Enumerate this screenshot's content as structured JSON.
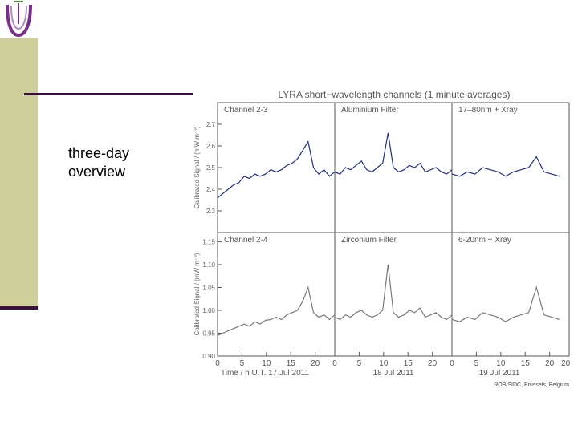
{
  "slide": {
    "body_lines": [
      "three-day",
      "overview"
    ]
  },
  "colors": {
    "sidebar": "#cfcf9c",
    "accent_line": "#3a0f3f",
    "upper_series": "#1f2f8a",
    "lower_series": "#7a7a7a",
    "logo": "#7a2e8a"
  },
  "icons": {
    "logo": "lyra-logo-icon"
  },
  "chart_data": {
    "type": "line",
    "title": "LYRA short−wavelength channels (1 minute averages)",
    "credit": "ROB/SIDC, Brussels, Belgium",
    "x_axis": {
      "ticks_per_panel": [
        "0",
        "5",
        "10",
        "15",
        "20"
      ],
      "panel_date_labels": [
        "Time / h U.T. 17 Jul 2011",
        "18 Jul 2011",
        "19 Jul 2011"
      ],
      "extra_tick": "20",
      "hours_per_panel": [
        24,
        24,
        22
      ]
    },
    "panels_top": {
      "ylabel": "Calibrated Signal / (mW m⁻²)",
      "ylim": [
        2.2,
        2.8
      ],
      "yticks": [
        "2.7",
        "2.6",
        "2.5",
        "2.4",
        "2.3"
      ],
      "ytick_values": [
        2.7,
        2.6,
        2.5,
        2.4,
        2.3
      ],
      "panel_labels": [
        "Channel 2-3",
        "Aluminium Filter",
        "17–80nm + Xray"
      ],
      "series": [
        {
          "values": [
            2.36,
            2.38,
            2.4,
            2.42,
            2.43,
            2.46,
            2.45,
            2.47,
            2.46,
            2.47,
            2.49,
            2.48,
            2.49,
            2.51,
            2.52,
            2.54,
            2.58,
            2.62,
            2.5,
            2.47,
            2.49,
            2.46,
            2.48
          ]
        },
        {
          "values": [
            2.48,
            2.47,
            2.5,
            2.49,
            2.51,
            2.53,
            2.49,
            2.48,
            2.5,
            2.52,
            2.66,
            2.5,
            2.48,
            2.49,
            2.51,
            2.5,
            2.52,
            2.48,
            2.49,
            2.5,
            2.48,
            2.47,
            2.49
          ]
        },
        {
          "values": [
            2.47,
            2.46,
            2.48,
            2.47,
            2.5,
            2.49,
            2.48,
            2.46,
            2.48,
            2.49,
            2.5,
            2.55,
            2.48,
            2.47,
            2.46
          ]
        }
      ]
    },
    "panels_bottom": {
      "ylabel": "Calibrated Signal / (mW m⁻²)",
      "ylim": [
        0.9,
        1.17
      ],
      "yticks": [
        "1.15",
        "1.10",
        "1.05",
        "1.00",
        "0.95",
        "0.90"
      ],
      "ytick_values": [
        1.15,
        1.1,
        1.05,
        1.0,
        0.95,
        0.9
      ],
      "panel_labels": [
        "Channel 2-4",
        "Zirconium Filter",
        "6-20nm + Xray"
      ],
      "series": [
        {
          "values": [
            0.945,
            0.95,
            0.955,
            0.96,
            0.965,
            0.97,
            0.965,
            0.975,
            0.97,
            0.978,
            0.98,
            0.985,
            0.98,
            0.99,
            0.995,
            1.0,
            1.02,
            1.05,
            0.995,
            0.985,
            0.99,
            0.98,
            0.99
          ]
        },
        {
          "values": [
            0.985,
            0.98,
            0.99,
            0.985,
            0.995,
            1.0,
            0.99,
            0.985,
            0.99,
            1.0,
            1.1,
            0.995,
            0.985,
            0.99,
            1.0,
            0.995,
            1.005,
            0.985,
            0.99,
            0.995,
            0.985,
            0.98,
            0.99
          ]
        },
        {
          "values": [
            0.98,
            0.975,
            0.985,
            0.98,
            0.995,
            0.99,
            0.985,
            0.975,
            0.985,
            0.99,
            0.995,
            1.05,
            0.99,
            0.985,
            0.98
          ]
        }
      ]
    }
  }
}
